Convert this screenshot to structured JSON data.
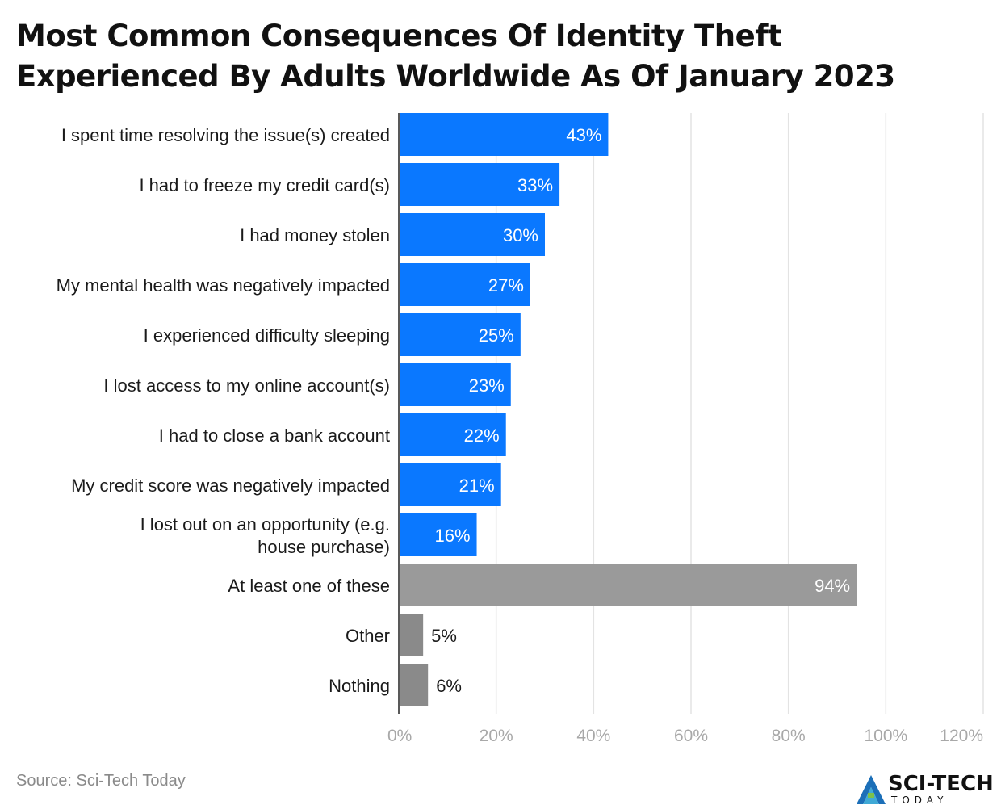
{
  "header": {
    "title": "Most Common Consequences Of Identity Theft Experienced By Adults Worldwide As Of January 2023"
  },
  "chart_data": {
    "type": "bar",
    "orientation": "horizontal",
    "title": "Most Common Consequences Of Identity Theft Experienced By Adults Worldwide As Of January 2023",
    "xlabel": "",
    "ylabel": "",
    "xlim": [
      0,
      120
    ],
    "x_ticks": [
      "0%",
      "20%",
      "40%",
      "60%",
      "80%",
      "100%",
      "120%"
    ],
    "grid": "vertical",
    "categories": [
      "I spent time resolving the issue(s) created",
      "I had to freeze my credit card(s)",
      "I had money stolen",
      "My mental health was negatively impacted",
      "I experienced difficulty sleeping",
      "I lost access to my online account(s)",
      "I had to close a bank account",
      "My credit score was negatively impacted",
      "I lost out on an opportunity (e.g. house purchase)",
      "At least one of these",
      "Other",
      "Nothing"
    ],
    "values": [
      43,
      33,
      30,
      27,
      25,
      23,
      22,
      21,
      16,
      94,
      5,
      6
    ],
    "data_labels": [
      "43%",
      "33%",
      "30%",
      "27%",
      "25%",
      "23%",
      "22%",
      "21%",
      "16%",
      "94%",
      "5%",
      "6%"
    ],
    "colors": [
      "#0a78ff",
      "#0a78ff",
      "#0a78ff",
      "#0a78ff",
      "#0a78ff",
      "#0a78ff",
      "#0a78ff",
      "#0a78ff",
      "#0a78ff",
      "#9a9a9a",
      "#8a8a8a",
      "#8a8a8a"
    ]
  },
  "footer": {
    "source": "Source: Sci-Tech Today",
    "logo_text": "SCI-TECH",
    "logo_subtext": "TODAY"
  }
}
